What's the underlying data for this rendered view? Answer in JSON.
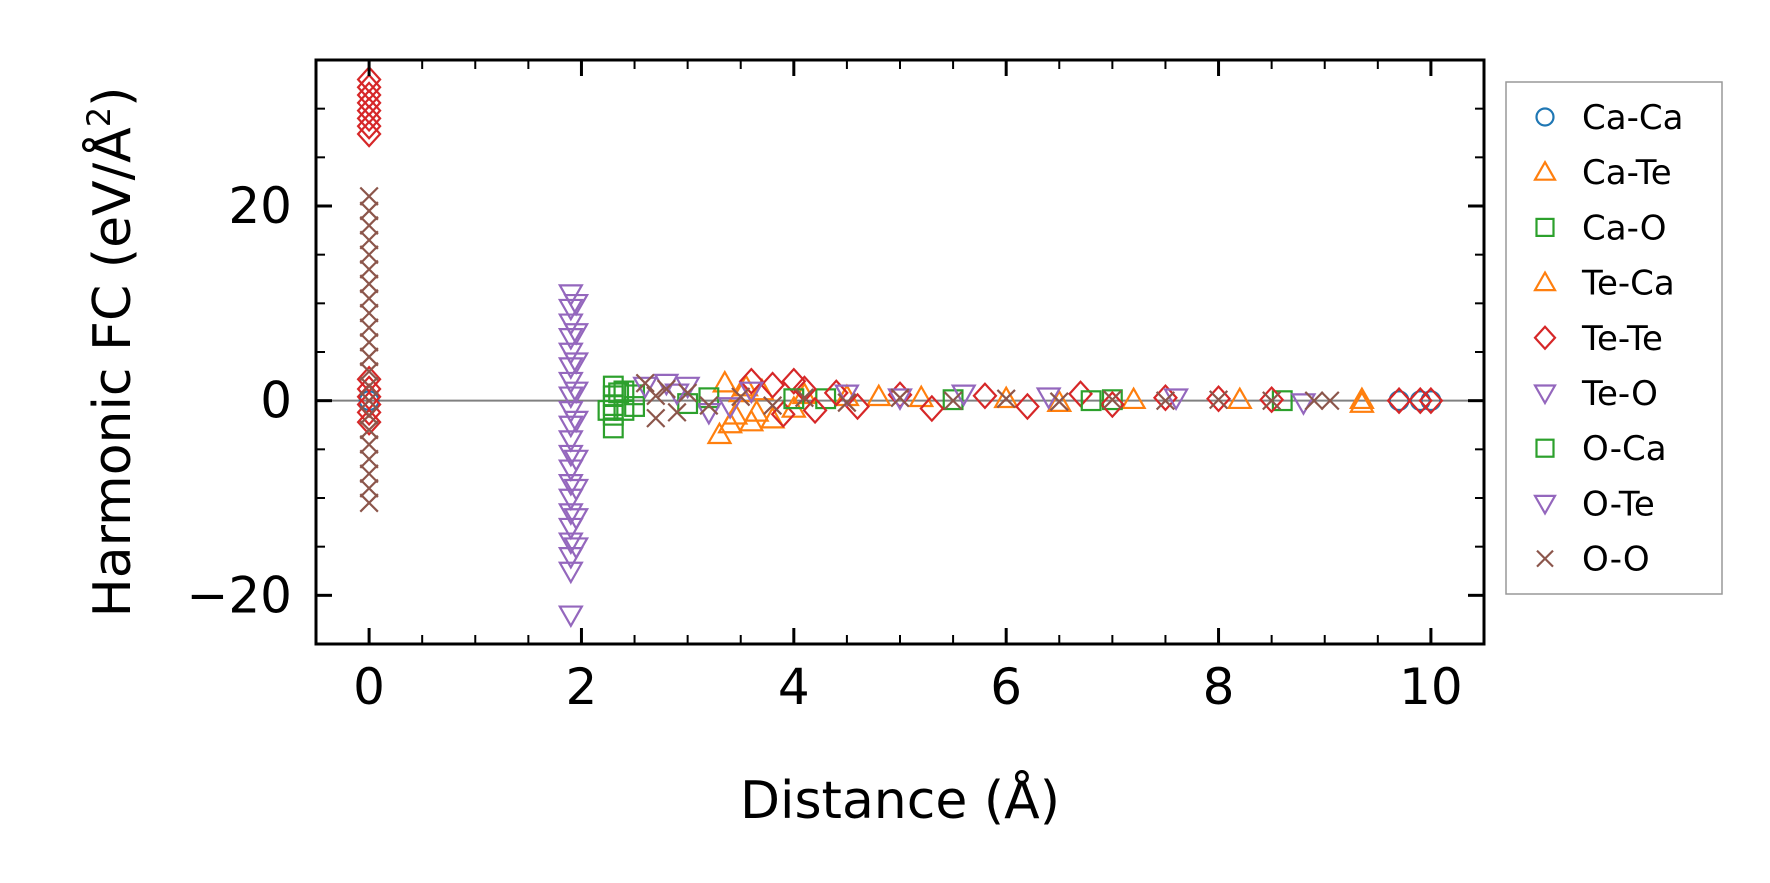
{
  "chart_data": {
    "type": "scatter",
    "xlabel": "Distance (Å)",
    "ylabel_main": "Harmonic FC (eV/Å",
    "ylabel_sup": "2",
    "ylabel_close": ")",
    "xlim": [
      -0.5,
      10.5
    ],
    "ylim": [
      -25,
      35
    ],
    "x_ticks": [
      0,
      2,
      4,
      6,
      8,
      10
    ],
    "x_tick_labels": [
      "0",
      "2",
      "4",
      "6",
      "8",
      "10"
    ],
    "y_ticks": [
      -20,
      0,
      20
    ],
    "y_tick_labels": [
      "−20",
      "0",
      "20"
    ],
    "zero_line": true,
    "legend_placement": "outside-right",
    "series": [
      {
        "name": "Ca-Ca",
        "marker": "circle",
        "color": "#1f77b4",
        "points": [
          [
            0,
            0
          ],
          [
            9.7,
            0
          ],
          [
            9.9,
            0
          ],
          [
            10,
            0
          ]
        ]
      },
      {
        "name": "Ca-Te",
        "marker": "triangle-up",
        "color": "#ff7f0e",
        "points": [
          [
            3.3,
            -3.5
          ],
          [
            3.35,
            1.8
          ],
          [
            3.4,
            -2.4
          ],
          [
            3.5,
            0.8
          ],
          [
            3.6,
            -2.2
          ],
          [
            3.7,
            1.0
          ],
          [
            3.8,
            -1.9
          ],
          [
            4.1,
            0.6
          ],
          [
            4.5,
            0.4
          ],
          [
            5.2,
            0.3
          ],
          [
            6.0,
            0.2
          ],
          [
            7.2,
            0.1
          ],
          [
            8.2,
            0.1
          ],
          [
            9.35,
            -0.3
          ]
        ]
      },
      {
        "name": "Ca-O",
        "marker": "square",
        "color": "#2ca02c",
        "points": [
          [
            2.3,
            1.5
          ],
          [
            2.3,
            0.5
          ],
          [
            2.3,
            -0.5
          ],
          [
            2.3,
            -1.5
          ],
          [
            2.3,
            -2.8
          ],
          [
            2.4,
            1.0
          ],
          [
            2.4,
            -1.0
          ],
          [
            2.5,
            0.6
          ],
          [
            2.5,
            -0.6
          ],
          [
            3.2,
            0.3
          ],
          [
            4.3,
            0.2
          ],
          [
            5.5,
            0.1
          ],
          [
            7.0,
            0.1
          ],
          [
            8.6,
            0
          ]
        ]
      },
      {
        "name": "Te-Ca",
        "marker": "triangle-up",
        "color": "#ff7f0e",
        "points": [
          [
            3.45,
            -1.5
          ],
          [
            3.55,
            1.4
          ],
          [
            3.65,
            -1.2
          ],
          [
            4.0,
            -0.8
          ],
          [
            4.8,
            0.4
          ],
          [
            6.5,
            -0.2
          ],
          [
            9.35,
            0.1
          ]
        ]
      },
      {
        "name": "Te-Te",
        "marker": "diamond",
        "color": "#d62728",
        "points": [
          [
            0,
            33
          ],
          [
            0,
            32.2
          ],
          [
            0,
            31.4
          ],
          [
            0,
            30.6
          ],
          [
            0,
            29.8
          ],
          [
            0,
            29
          ],
          [
            0,
            28.2
          ],
          [
            0,
            27.4
          ],
          [
            0,
            2.2
          ],
          [
            0,
            1.2
          ],
          [
            0,
            0.4
          ],
          [
            0,
            -0.4
          ],
          [
            0,
            -1.2
          ],
          [
            0,
            -2.2
          ],
          [
            3.6,
            2.0
          ],
          [
            3.8,
            1.6
          ],
          [
            3.9,
            -1.4
          ],
          [
            4.0,
            2.0
          ],
          [
            4.1,
            1.2
          ],
          [
            4.2,
            -1.0
          ],
          [
            4.4,
            0.8
          ],
          [
            4.6,
            -0.6
          ],
          [
            5.0,
            0.6
          ],
          [
            5.3,
            -0.8
          ],
          [
            5.8,
            0.5
          ],
          [
            6.2,
            -0.6
          ],
          [
            6.7,
            0.7
          ],
          [
            7.0,
            -0.4
          ],
          [
            7.5,
            0.3
          ],
          [
            8.0,
            0.2
          ],
          [
            8.5,
            0.1
          ],
          [
            9.7,
            0
          ],
          [
            9.9,
            0
          ],
          [
            10,
            0
          ]
        ]
      },
      {
        "name": "Te-O",
        "marker": "triangle-down",
        "color": "#9467bd",
        "points": [
          [
            1.9,
            11
          ],
          [
            1.9,
            9.5
          ],
          [
            1.9,
            8
          ],
          [
            1.9,
            6.5
          ],
          [
            1.9,
            5
          ],
          [
            1.9,
            3.5
          ],
          [
            1.9,
            2
          ],
          [
            1.9,
            0.5
          ],
          [
            1.9,
            -1
          ],
          [
            1.9,
            -2.5
          ],
          [
            1.9,
            -4
          ],
          [
            1.9,
            -5.5
          ],
          [
            1.9,
            -7
          ],
          [
            1.9,
            -8.5
          ],
          [
            1.9,
            -10
          ],
          [
            1.9,
            -11.5
          ],
          [
            1.9,
            -13
          ],
          [
            1.9,
            -14.5
          ],
          [
            1.9,
            -16
          ],
          [
            1.9,
            -17.5
          ],
          [
            1.9,
            -22
          ],
          [
            2.6,
            1.5
          ],
          [
            2.8,
            1.8
          ],
          [
            3.0,
            1.5
          ],
          [
            3.2,
            -1.2
          ],
          [
            3.6,
            1.0
          ],
          [
            4.5,
            0.7
          ],
          [
            5.6,
            0.7
          ],
          [
            6.4,
            0.4
          ],
          [
            7.6,
            0.3
          ],
          [
            8.8,
            -0.2
          ]
        ]
      },
      {
        "name": "O-Ca",
        "marker": "square",
        "color": "#2ca02c",
        "points": [
          [
            2.25,
            -1.0
          ],
          [
            2.35,
            0.8
          ],
          [
            3.0,
            -0.3
          ],
          [
            4.0,
            0.2
          ],
          [
            6.8,
            0
          ]
        ]
      },
      {
        "name": "O-Te",
        "marker": "triangle-down",
        "color": "#9467bd",
        "points": [
          [
            1.95,
            10
          ],
          [
            1.95,
            7
          ],
          [
            1.95,
            4
          ],
          [
            1.95,
            1
          ],
          [
            1.95,
            -2
          ],
          [
            1.95,
            -6
          ],
          [
            1.95,
            -9
          ],
          [
            1.95,
            -12
          ],
          [
            1.95,
            -15
          ],
          [
            2.9,
            0.8
          ],
          [
            3.4,
            -0.6
          ],
          [
            5.0,
            0.3
          ]
        ]
      },
      {
        "name": "O-O",
        "marker": "x",
        "color": "#8c564b",
        "points": [
          [
            0,
            21
          ],
          [
            0,
            19.5
          ],
          [
            0,
            18
          ],
          [
            0,
            16.5
          ],
          [
            0,
            15
          ],
          [
            0,
            13.5
          ],
          [
            0,
            12
          ],
          [
            0,
            10.5
          ],
          [
            0,
            9
          ],
          [
            0,
            7.5
          ],
          [
            0,
            6
          ],
          [
            0,
            4.5
          ],
          [
            0,
            3
          ],
          [
            0,
            1.5
          ],
          [
            0,
            0
          ],
          [
            0,
            -1.5
          ],
          [
            0,
            -3
          ],
          [
            0,
            -4.5
          ],
          [
            0,
            -6
          ],
          [
            0,
            -7.5
          ],
          [
            0,
            -9
          ],
          [
            0,
            -10.5
          ],
          [
            2.6,
            1.8
          ],
          [
            2.7,
            0.5
          ],
          [
            2.7,
            -1.8
          ],
          [
            2.8,
            1.2
          ],
          [
            2.9,
            -1.2
          ],
          [
            3.0,
            0.8
          ],
          [
            3.2,
            -0.5
          ],
          [
            3.5,
            0.4
          ],
          [
            3.8,
            -0.5
          ],
          [
            4.1,
            0.3
          ],
          [
            4.5,
            -0.2
          ],
          [
            5.0,
            0.3
          ],
          [
            5.5,
            0
          ],
          [
            6.0,
            0.2
          ],
          [
            6.5,
            -0.1
          ],
          [
            7.0,
            0.1
          ],
          [
            7.5,
            0
          ],
          [
            8.0,
            0.1
          ],
          [
            8.5,
            0
          ],
          [
            8.9,
            0
          ],
          [
            9.05,
            0
          ]
        ]
      }
    ]
  }
}
